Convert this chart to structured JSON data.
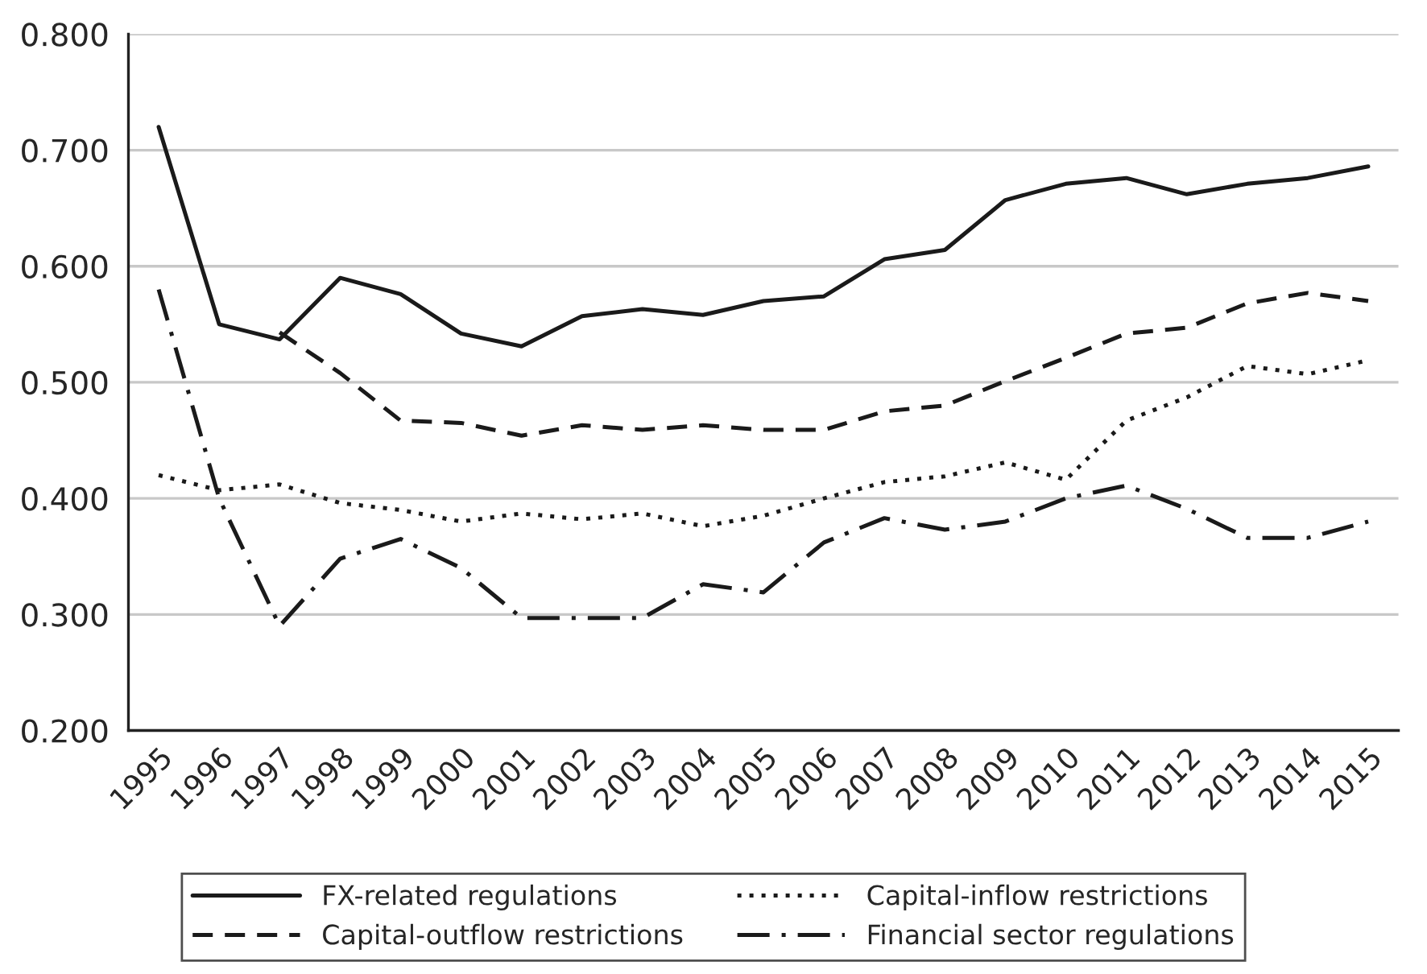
{
  "chart_data": {
    "type": "line",
    "categories": [
      "1995",
      "1996",
      "1997",
      "1998",
      "1999",
      "2000",
      "2001",
      "2002",
      "2003",
      "2004",
      "2005",
      "2006",
      "2007",
      "2008",
      "2009",
      "2010",
      "2011",
      "2012",
      "2013",
      "2014",
      "2015"
    ],
    "series": [
      {
        "name": "FX-related regulations",
        "color": "#1a1a1a",
        "line_style": "solid",
        "values": [
          0.72,
          0.55,
          0.537,
          0.59,
          0.576,
          0.542,
          0.531,
          0.557,
          0.563,
          0.558,
          0.57,
          0.574,
          0.606,
          0.614,
          0.657,
          0.671,
          0.676,
          0.662,
          0.671,
          0.676,
          0.686
        ]
      },
      {
        "name": "Capital-outflow restrictions",
        "color": "#1a1a1a",
        "line_style": "dashed",
        "values": [
          null,
          null,
          0.543,
          0.508,
          0.467,
          0.465,
          0.454,
          0.463,
          0.459,
          0.463,
          0.459,
          0.459,
          0.475,
          0.48,
          0.501,
          0.521,
          0.542,
          0.547,
          0.568,
          0.577,
          0.57
        ]
      },
      {
        "name": "Capital-inflow restrictions",
        "color": "#1a1a1a",
        "line_style": "dotted",
        "values": [
          0.42,
          0.407,
          0.412,
          0.396,
          0.39,
          0.38,
          0.387,
          0.382,
          0.387,
          0.376,
          0.385,
          0.4,
          0.414,
          0.419,
          0.431,
          0.416,
          0.467,
          0.487,
          0.514,
          0.507,
          0.519
        ]
      },
      {
        "name": "Financial sector regulations",
        "color": "#1a1a1a",
        "line_style": "dashdot",
        "values": [
          0.58,
          0.4,
          0.29,
          0.348,
          0.365,
          0.34,
          0.297,
          0.297,
          0.297,
          0.326,
          0.319,
          0.362,
          0.383,
          0.373,
          0.38,
          0.4,
          0.411,
          0.391,
          0.366,
          0.366,
          0.38
        ]
      }
    ],
    "ylim": [
      0.2,
      0.8
    ],
    "yticks": [
      {
        "value": 0.2,
        "label": "0.200"
      },
      {
        "value": 0.3,
        "label": "0.300"
      },
      {
        "value": 0.4,
        "label": "0.400"
      },
      {
        "value": 0.5,
        "label": "0.500"
      },
      {
        "value": 0.6,
        "label": "0.600"
      },
      {
        "value": 0.7,
        "label": "0.700"
      },
      {
        "value": 0.8,
        "label": "0.800"
      }
    ],
    "grid": "y",
    "legend": "bottom",
    "marker": "none"
  }
}
